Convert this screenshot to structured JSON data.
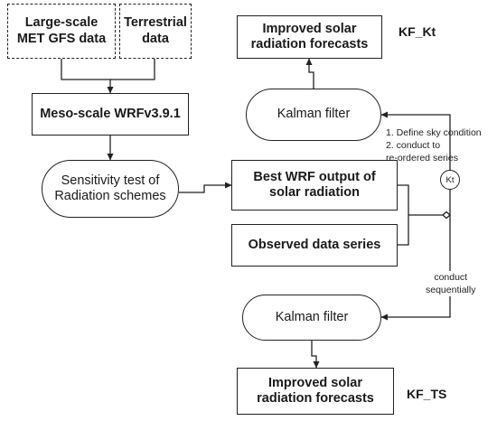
{
  "nodes": {
    "large_scale": "Large-scale\nMET GFS data",
    "terrestrial": "Terrestrial\ndata",
    "wrf": "Meso-scale WRFv3.9.1",
    "sensitivity": "Sensitivity test of\nRadiation schemes",
    "best_wrf": "Best WRF output of\nsolar radiation",
    "observed": "Observed data series",
    "kalman_top": "Kalman filter",
    "improved_top": "Improved solar\nradiation forecasts",
    "kalman_bottom": "Kalman filter",
    "improved_bottom": "Improved solar\nradiation forecasts"
  },
  "labels": {
    "kf_kt": "KF_Kt",
    "kf_ts": "KF_TS",
    "kt_circle": "Kt",
    "steps_note": "1. Define sky condition\n2. conduct to\n    re-ordered series",
    "sequential_note": "conduct\nsequentially"
  }
}
